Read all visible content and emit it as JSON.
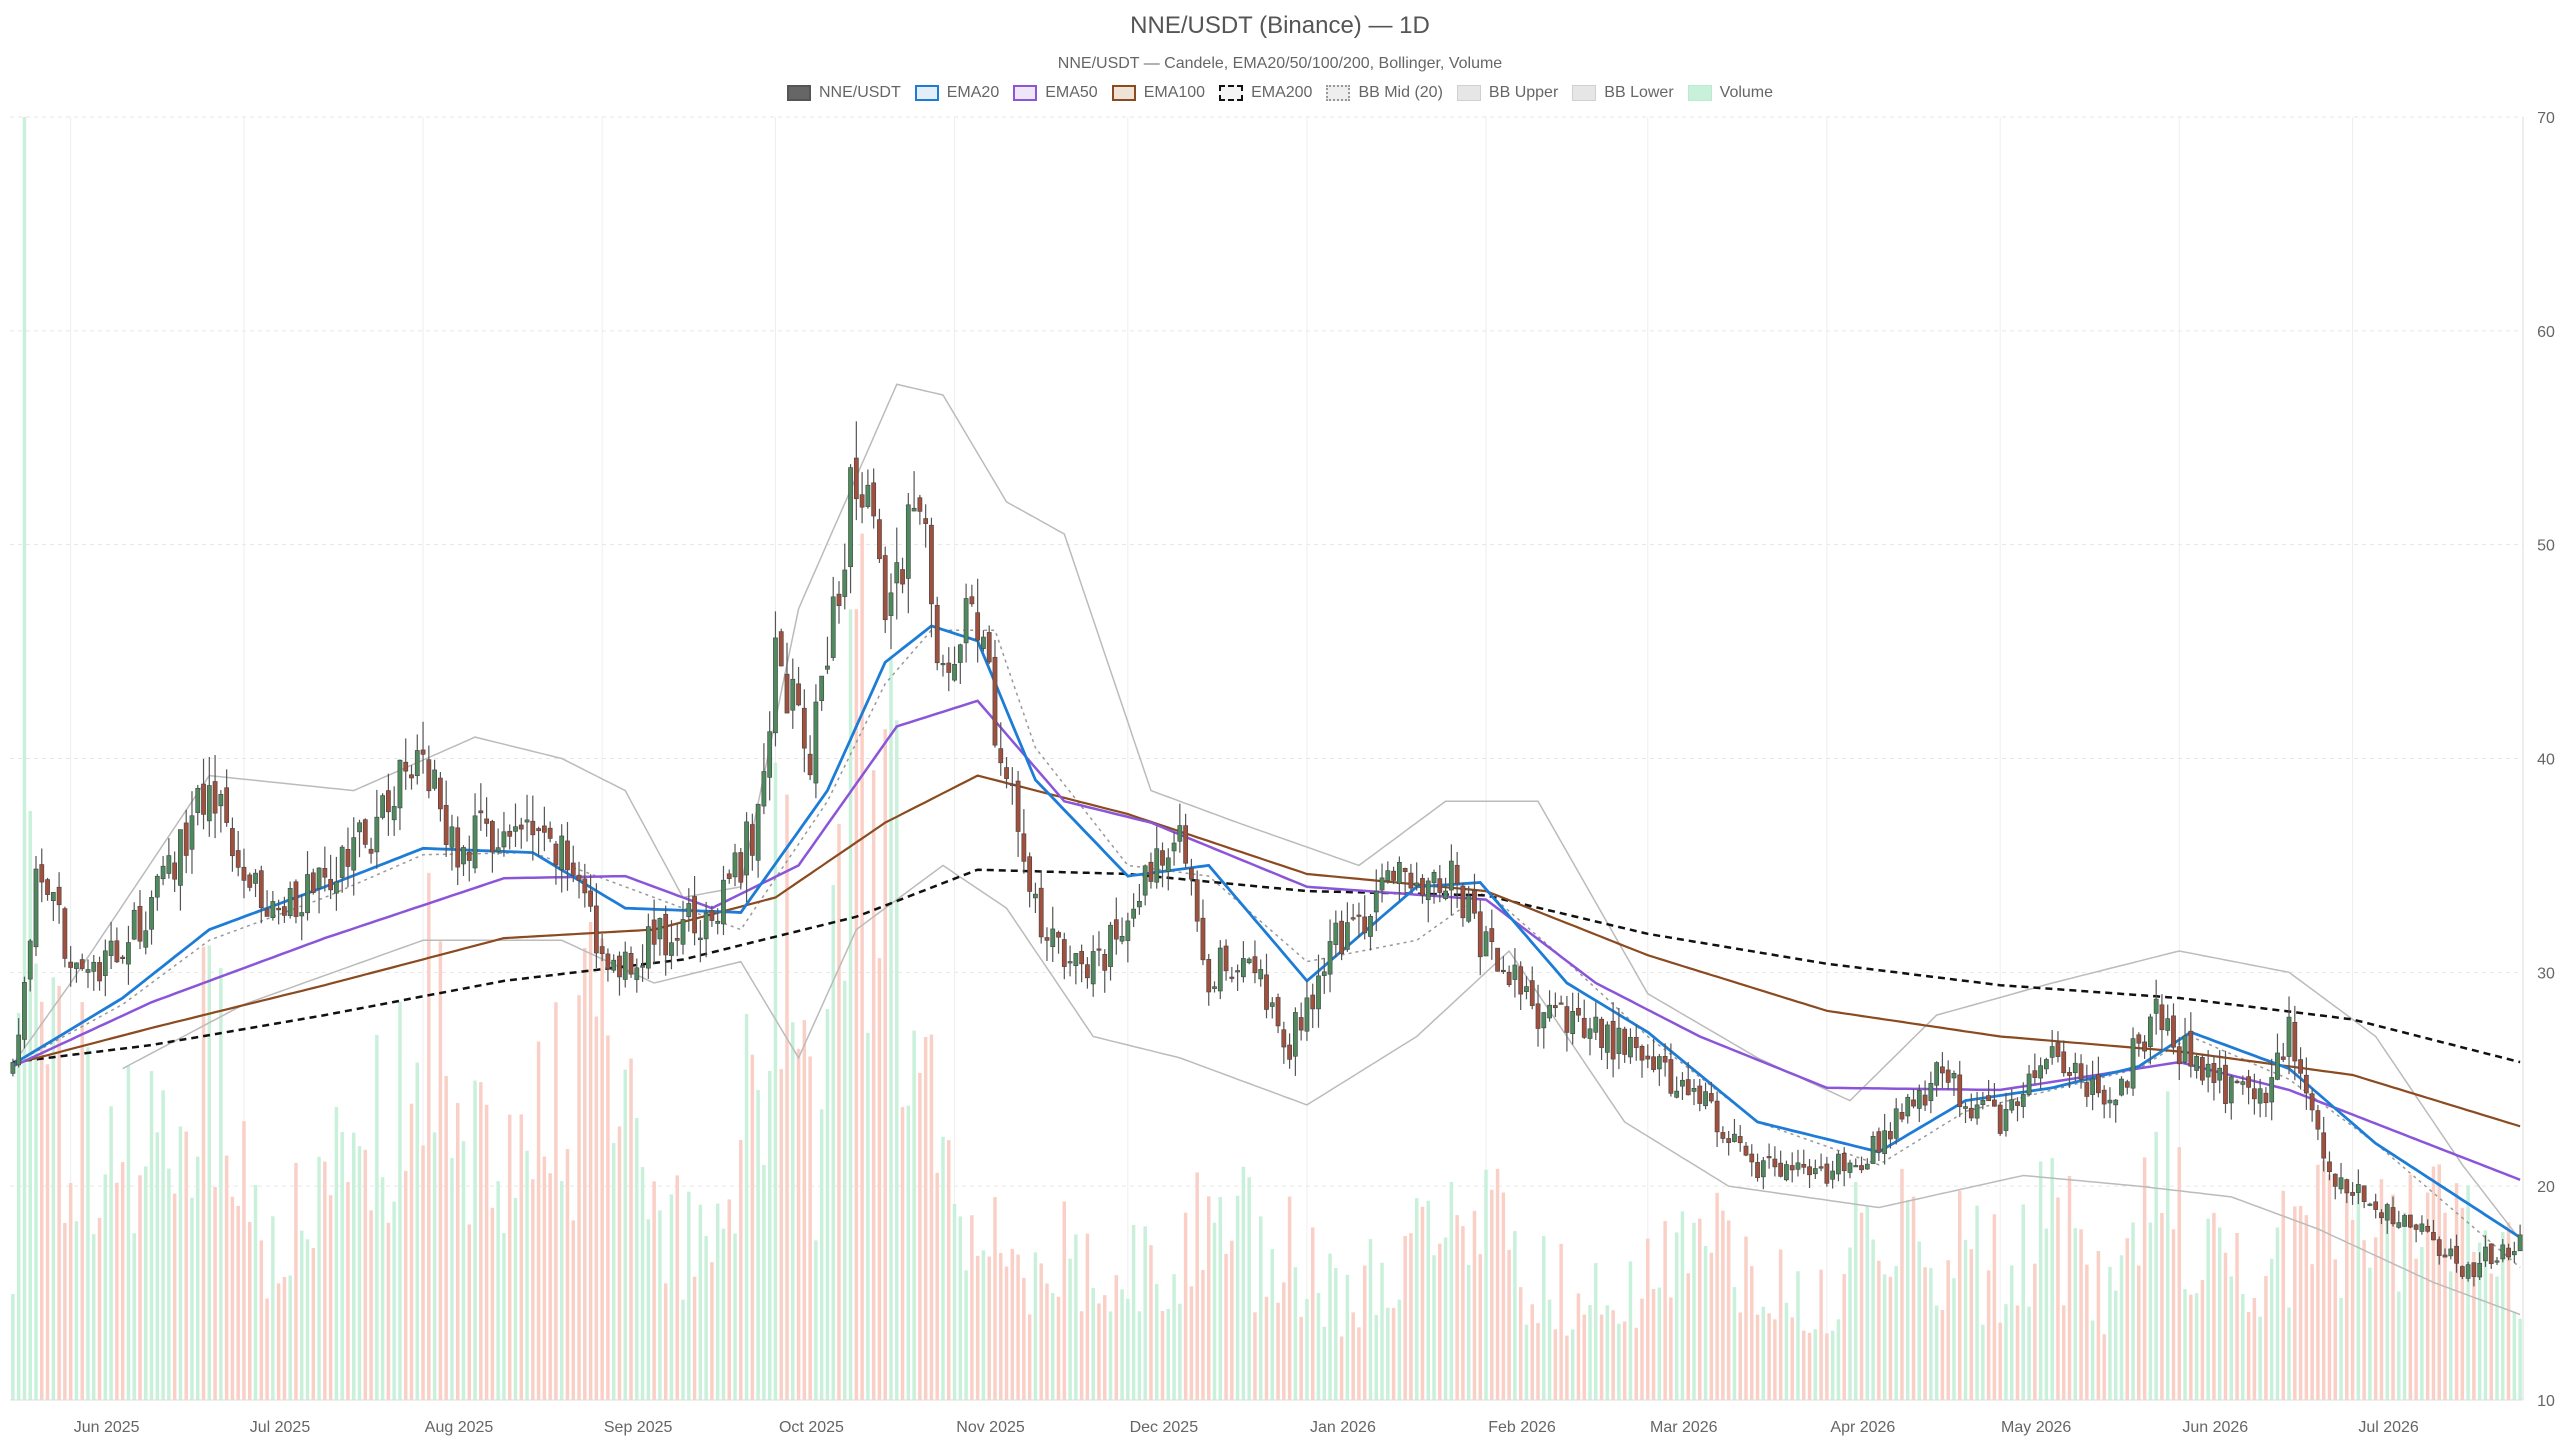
{
  "chart_data": {
    "type": "candlestick",
    "title": "NNE/USDT (Binance) — 1D",
    "subtitle": "NNE/USDT — Candele, EMA20/50/100/200, Bollinger, Volume",
    "legend": [
      {
        "label": "NNE/USDT",
        "color": "#666666",
        "style": "solid-fill"
      },
      {
        "label": "EMA20",
        "color": "#1c7cd6",
        "style": "line"
      },
      {
        "label": "EMA50",
        "color": "#8a55d8",
        "style": "line"
      },
      {
        "label": "EMA100",
        "color": "#8b4a1f",
        "style": "line"
      },
      {
        "label": "EMA200",
        "color": "#111111",
        "style": "dashed"
      },
      {
        "label": "BB Mid (20)",
        "color": "#999999",
        "style": "dotted"
      },
      {
        "label": "BB Upper",
        "color": "#bbbbbb",
        "style": "light"
      },
      {
        "label": "BB Lower",
        "color": "#bbbbbb",
        "style": "light"
      },
      {
        "label": "Volume",
        "color": "#b8ecd0",
        "style": "volume"
      }
    ],
    "legend_position": "top-center",
    "x_range": [
      "2025-05-22",
      "2026-07-30"
    ],
    "x_ticks": [
      {
        "date": "2025-06-01",
        "label": "Jun 2025"
      },
      {
        "date": "2025-07-01",
        "label": "Jul 2025"
      },
      {
        "date": "2025-08-01",
        "label": "Aug 2025"
      },
      {
        "date": "2025-09-01",
        "label": "Sep 2025"
      },
      {
        "date": "2025-10-01",
        "label": "Oct 2025"
      },
      {
        "date": "2025-11-01",
        "label": "Nov 2025"
      },
      {
        "date": "2025-12-01",
        "label": "Dec 2025"
      },
      {
        "date": "2026-01-01",
        "label": "Jan 2026"
      },
      {
        "date": "2026-02-01",
        "label": "Feb 2026"
      },
      {
        "date": "2026-03-01",
        "label": "Mar 2026"
      },
      {
        "date": "2026-04-01",
        "label": "Apr 2026"
      },
      {
        "date": "2026-05-01",
        "label": "May 2026"
      },
      {
        "date": "2026-06-01",
        "label": "Jun 2026"
      },
      {
        "date": "2026-07-01",
        "label": "Jul 2026"
      }
    ],
    "ylim": [
      10,
      70
    ],
    "y_ticks": [
      10,
      20,
      30,
      40,
      50,
      60,
      70
    ],
    "y_axis_side": "right",
    "grid": true,
    "colors": {
      "up": "#4e8a5e",
      "down": "#a0503d",
      "vol_up": "#c9f0da",
      "vol_down": "#f9cfc6"
    },
    "anchors": {
      "close": [
        [
          "2025-05-22",
          25.5
        ],
        [
          "2025-05-26",
          34
        ],
        [
          "2025-06-05",
          29.5
        ],
        [
          "2025-06-15",
          33
        ],
        [
          "2025-06-25",
          39
        ],
        [
          "2025-07-05",
          33
        ],
        [
          "2025-07-15",
          34
        ],
        [
          "2025-07-25",
          37.5
        ],
        [
          "2025-08-01",
          41
        ],
        [
          "2025-08-05",
          36
        ],
        [
          "2025-08-15",
          36.5
        ],
        [
          "2025-08-28",
          35
        ],
        [
          "2025-09-01",
          30
        ],
        [
          "2025-09-10",
          31.5
        ],
        [
          "2025-09-20",
          32.5
        ],
        [
          "2025-09-28",
          37
        ],
        [
          "2025-10-01",
          45
        ],
        [
          "2025-10-07",
          40
        ],
        [
          "2025-10-15",
          54
        ],
        [
          "2025-10-20",
          47
        ],
        [
          "2025-10-26",
          52
        ],
        [
          "2025-10-30",
          43
        ],
        [
          "2025-11-03",
          48
        ],
        [
          "2025-11-08",
          42
        ],
        [
          "2025-11-12",
          36
        ],
        [
          "2025-11-18",
          31
        ],
        [
          "2025-11-25",
          30
        ],
        [
          "2025-12-02",
          33
        ],
        [
          "2025-12-10",
          37.5
        ],
        [
          "2025-12-15",
          30
        ],
        [
          "2025-12-22",
          31
        ],
        [
          "2025-12-28",
          26
        ],
        [
          "2026-01-05",
          31
        ],
        [
          "2026-01-15",
          34
        ],
        [
          "2026-01-25",
          35
        ],
        [
          "2026-02-01",
          31
        ],
        [
          "2026-02-10",
          28
        ],
        [
          "2026-02-20",
          27
        ],
        [
          "2026-03-01",
          26
        ],
        [
          "2026-03-10",
          24
        ],
        [
          "2026-03-20",
          21
        ],
        [
          "2026-04-01",
          20.5
        ],
        [
          "2026-04-10",
          22
        ],
        [
          "2026-04-20",
          25
        ],
        [
          "2026-05-01",
          23
        ],
        [
          "2026-05-10",
          26
        ],
        [
          "2026-05-20",
          24
        ],
        [
          "2026-05-28",
          28
        ],
        [
          "2026-06-05",
          25
        ],
        [
          "2026-06-15",
          24
        ],
        [
          "2026-06-20",
          27
        ],
        [
          "2026-06-28",
          20
        ],
        [
          "2026-07-10",
          18.5
        ],
        [
          "2026-07-20",
          16
        ],
        [
          "2026-07-30",
          17.5
        ]
      ],
      "volume_pct": [
        [
          "2025-05-22",
          10
        ],
        [
          "2025-05-24",
          90
        ],
        [
          "2025-05-27",
          35
        ],
        [
          "2025-06-01",
          22
        ],
        [
          "2025-06-15",
          18
        ],
        [
          "2025-06-25",
          28
        ],
        [
          "2025-07-05",
          12
        ],
        [
          "2025-07-20",
          17
        ],
        [
          "2025-08-01",
          30
        ],
        [
          "2025-08-05",
          27
        ],
        [
          "2025-08-15",
          15
        ],
        [
          "2025-09-01",
          28
        ],
        [
          "2025-09-10",
          12
        ],
        [
          "2025-09-20",
          13
        ],
        [
          "2025-09-28",
          28
        ],
        [
          "2025-10-02",
          40
        ],
        [
          "2025-10-08",
          15
        ],
        [
          "2025-10-15",
          52
        ],
        [
          "2025-10-18",
          40
        ],
        [
          "2025-10-25",
          42
        ],
        [
          "2025-10-30",
          15
        ],
        [
          "2025-11-05",
          16
        ],
        [
          "2025-11-15",
          10
        ],
        [
          "2025-11-25",
          12
        ],
        [
          "2025-12-05",
          10
        ],
        [
          "2025-12-15",
          13
        ],
        [
          "2025-12-28",
          12
        ],
        [
          "2026-01-05",
          8
        ],
        [
          "2026-01-20",
          12
        ],
        [
          "2026-01-31",
          14
        ],
        [
          "2026-02-10",
          9
        ],
        [
          "2026-02-20",
          8
        ],
        [
          "2026-03-01",
          9
        ],
        [
          "2026-03-15",
          12
        ],
        [
          "2026-03-20",
          8
        ],
        [
          "2026-04-01",
          9
        ],
        [
          "2026-04-10",
          16
        ],
        [
          "2026-04-20",
          12
        ],
        [
          "2026-05-01",
          10
        ],
        [
          "2026-05-10",
          14
        ],
        [
          "2026-05-20",
          8
        ],
        [
          "2026-05-30",
          17
        ],
        [
          "2026-06-05",
          12
        ],
        [
          "2026-06-15",
          10
        ],
        [
          "2026-06-25",
          16
        ],
        [
          "2026-07-05",
          12
        ],
        [
          "2026-07-15",
          14
        ],
        [
          "2026-07-30",
          10
        ]
      ],
      "ema200": [
        [
          "2025-05-22",
          25.8
        ],
        [
          "2025-06-15",
          26.6
        ],
        [
          "2025-07-15",
          28.0
        ],
        [
          "2025-08-15",
          29.6
        ],
        [
          "2025-09-15",
          30.6
        ],
        [
          "2025-10-15",
          32.6
        ],
        [
          "2025-11-05",
          34.8
        ],
        [
          "2025-12-01",
          34.6
        ],
        [
          "2026-01-01",
          33.8
        ],
        [
          "2026-02-01",
          33.6
        ],
        [
          "2026-03-01",
          31.8
        ],
        [
          "2026-04-01",
          30.4
        ],
        [
          "2026-05-01",
          29.4
        ],
        [
          "2026-06-01",
          28.8
        ],
        [
          "2026-07-01",
          27.8
        ],
        [
          "2026-07-30",
          25.8
        ]
      ],
      "ema100": [
        [
          "2025-05-22",
          25.7
        ],
        [
          "2025-06-15",
          27.4
        ],
        [
          "2025-07-15",
          29.4
        ],
        [
          "2025-08-15",
          31.6
        ],
        [
          "2025-09-10",
          32.0
        ],
        [
          "2025-10-01",
          33.5
        ],
        [
          "2025-10-20",
          37.0
        ],
        [
          "2025-11-05",
          39.2
        ],
        [
          "2025-12-01",
          37.4
        ],
        [
          "2026-01-01",
          34.6
        ],
        [
          "2026-02-01",
          33.8
        ],
        [
          "2026-03-01",
          30.8
        ],
        [
          "2026-04-01",
          28.2
        ],
        [
          "2026-05-01",
          27.0
        ],
        [
          "2026-06-01",
          26.3
        ],
        [
          "2026-07-01",
          25.2
        ],
        [
          "2026-07-30",
          22.8
        ]
      ],
      "ema50": [
        [
          "2025-05-22",
          25.6
        ],
        [
          "2025-06-15",
          28.6
        ],
        [
          "2025-07-15",
          31.6
        ],
        [
          "2025-08-15",
          34.4
        ],
        [
          "2025-09-05",
          34.5
        ],
        [
          "2025-09-20",
          33.0
        ],
        [
          "2025-10-05",
          35.0
        ],
        [
          "2025-10-22",
          41.5
        ],
        [
          "2025-11-05",
          42.7
        ],
        [
          "2025-11-20",
          38.0
        ],
        [
          "2025-12-05",
          37.0
        ],
        [
          "2026-01-01",
          34.0
        ],
        [
          "2026-02-01",
          33.4
        ],
        [
          "2026-02-20",
          29.5
        ],
        [
          "2026-03-10",
          27.0
        ],
        [
          "2026-04-01",
          24.6
        ],
        [
          "2026-05-01",
          24.5
        ],
        [
          "2026-06-01",
          25.8
        ],
        [
          "2026-06-20",
          24.5
        ],
        [
          "2026-07-30",
          20.3
        ]
      ],
      "ema20": [
        [
          "2025-05-22",
          25.7
        ],
        [
          "2025-06-10",
          28.8
        ],
        [
          "2025-06-25",
          32.0
        ],
        [
          "2025-07-15",
          34.0
        ],
        [
          "2025-08-01",
          35.8
        ],
        [
          "2025-08-20",
          35.6
        ],
        [
          "2025-09-05",
          33.0
        ],
        [
          "2025-09-25",
          32.8
        ],
        [
          "2025-10-10",
          38.5
        ],
        [
          "2025-10-20",
          44.5
        ],
        [
          "2025-10-28",
          46.2
        ],
        [
          "2025-11-05",
          45.5
        ],
        [
          "2025-11-15",
          39.0
        ],
        [
          "2025-12-01",
          34.5
        ],
        [
          "2025-12-15",
          35.0
        ],
        [
          "2026-01-01",
          29.6
        ],
        [
          "2026-01-20",
          34.0
        ],
        [
          "2026-01-31",
          34.2
        ],
        [
          "2026-02-15",
          29.5
        ],
        [
          "2026-03-01",
          27.2
        ],
        [
          "2026-03-20",
          23.0
        ],
        [
          "2026-04-10",
          21.6
        ],
        [
          "2026-04-25",
          24.0
        ],
        [
          "2026-05-10",
          24.6
        ],
        [
          "2026-05-25",
          25.6
        ],
        [
          "2026-06-03",
          27.2
        ],
        [
          "2026-06-20",
          25.5
        ],
        [
          "2026-07-05",
          22.0
        ],
        [
          "2026-07-30",
          17.6
        ]
      ],
      "bb_upper": [
        [
          "2025-05-22",
          25.7
        ],
        [
          "2025-06-01",
          29.5
        ],
        [
          "2025-06-25",
          39.2
        ],
        [
          "2025-07-20",
          38.5
        ],
        [
          "2025-08-10",
          41.0
        ],
        [
          "2025-08-25",
          40.0
        ],
        [
          "2025-09-05",
          38.5
        ],
        [
          "2025-09-15",
          33.5
        ],
        [
          "2025-09-25",
          34.0
        ],
        [
          "2025-10-05",
          47.0
        ],
        [
          "2025-10-22",
          57.5
        ],
        [
          "2025-10-30",
          57.0
        ],
        [
          "2025-11-10",
          52.0
        ],
        [
          "2025-11-20",
          50.5
        ],
        [
          "2025-12-05",
          38.5
        ],
        [
          "2025-12-20",
          37.0
        ],
        [
          "2026-01-10",
          35.0
        ],
        [
          "2026-01-25",
          38.0
        ],
        [
          "2026-02-10",
          38.0
        ],
        [
          "2026-03-01",
          29.0
        ],
        [
          "2026-03-20",
          26.0
        ],
        [
          "2026-04-05",
          24.0
        ],
        [
          "2026-04-20",
          28.0
        ],
        [
          "2026-05-10",
          29.5
        ],
        [
          "2026-06-01",
          31.0
        ],
        [
          "2026-06-20",
          30.0
        ],
        [
          "2026-07-05",
          27.0
        ],
        [
          "2026-07-20",
          21.0
        ],
        [
          "2026-07-30",
          17.5
        ]
      ],
      "bb_lower": [
        [
          "2025-06-10",
          25.5
        ],
        [
          "2025-07-01",
          28.5
        ],
        [
          "2025-08-01",
          31.5
        ],
        [
          "2025-08-25",
          31.5
        ],
        [
          "2025-09-10",
          29.5
        ],
        [
          "2025-09-25",
          30.5
        ],
        [
          "2025-10-05",
          26.0
        ],
        [
          "2025-10-15",
          32.0
        ],
        [
          "2025-10-30",
          35.0
        ],
        [
          "2025-11-10",
          33.0
        ],
        [
          "2025-11-25",
          27.0
        ],
        [
          "2025-12-10",
          26.0
        ],
        [
          "2026-01-01",
          23.8
        ],
        [
          "2026-01-20",
          27.0
        ],
        [
          "2026-02-05",
          31.0
        ],
        [
          "2026-02-25",
          23.0
        ],
        [
          "2026-03-15",
          20.0
        ],
        [
          "2026-04-10",
          19.0
        ],
        [
          "2026-05-05",
          20.5
        ],
        [
          "2026-05-25",
          20.0
        ],
        [
          "2026-06-10",
          19.5
        ],
        [
          "2026-06-25",
          18.0
        ],
        [
          "2026-07-15",
          15.5
        ],
        [
          "2026-07-30",
          14.0
        ]
      ],
      "bb_mid": [
        [
          "2025-05-22",
          25.7
        ],
        [
          "2025-06-10",
          28.5
        ],
        [
          "2025-06-25",
          31.5
        ],
        [
          "2025-07-15",
          33.5
        ],
        [
          "2025-08-01",
          35.5
        ],
        [
          "2025-08-20",
          35.6
        ],
        [
          "2025-09-05",
          34.0
        ],
        [
          "2025-09-25",
          32.0
        ],
        [
          "2025-10-10",
          38.0
        ],
        [
          "2025-10-20",
          43.5
        ],
        [
          "2025-10-28",
          46.0
        ],
        [
          "2025-11-08",
          46.0
        ],
        [
          "2025-11-15",
          40.5
        ],
        [
          "2025-12-01",
          35.0
        ],
        [
          "2025-12-15",
          34.5
        ],
        [
          "2026-01-01",
          30.5
        ],
        [
          "2026-01-20",
          31.5
        ],
        [
          "2026-02-01",
          33.8
        ],
        [
          "2026-02-15",
          30.5
        ],
        [
          "2026-03-01",
          27.0
        ],
        [
          "2026-03-20",
          23.0
        ],
        [
          "2026-04-10",
          21.0
        ],
        [
          "2026-04-25",
          23.5
        ],
        [
          "2026-05-10",
          24.5
        ],
        [
          "2026-05-25",
          25.5
        ],
        [
          "2026-06-03",
          27.0
        ],
        [
          "2026-06-20",
          25.0
        ],
        [
          "2026-07-05",
          22.0
        ],
        [
          "2026-07-30",
          16.2
        ]
      ]
    }
  }
}
